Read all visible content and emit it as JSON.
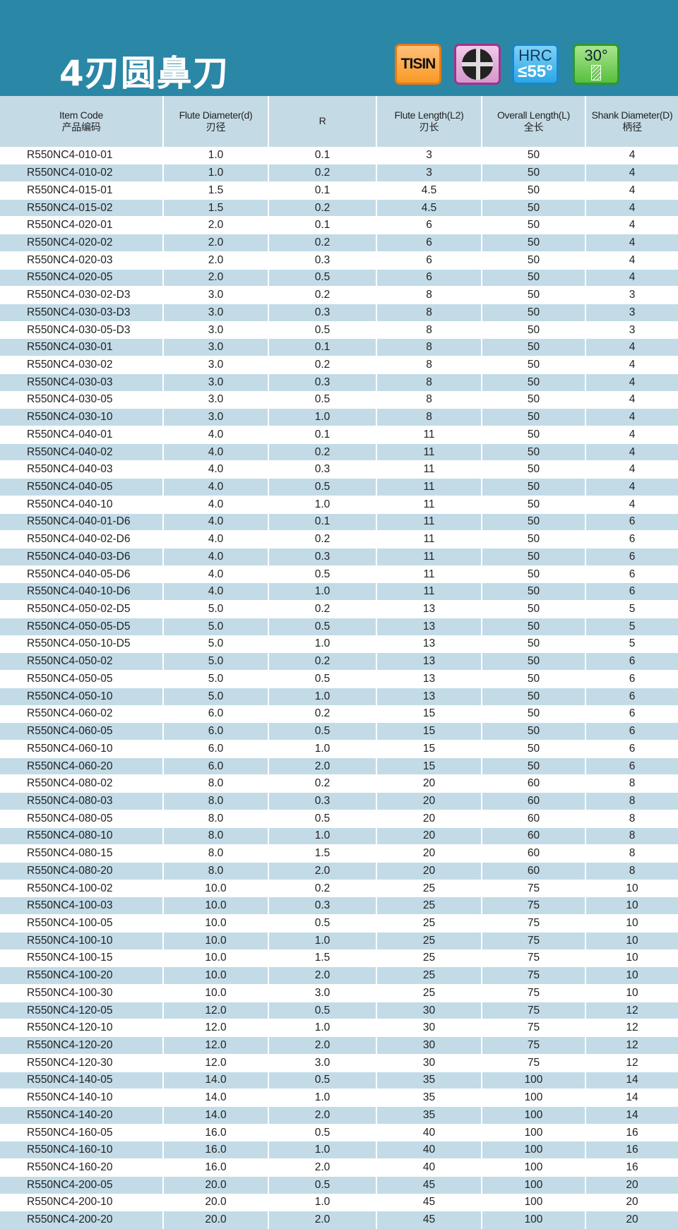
{
  "title": "4刃圆鼻刀",
  "badges": {
    "coating": "TISIN",
    "flutes_icon": "four-flute-icon",
    "hardness_top": "HRC",
    "hardness_bottom": "≤55°",
    "helix": "30°"
  },
  "colors": {
    "banner": "#2b87a6",
    "header_bg": "#c4dbe6",
    "stripe": "#c2dbe7"
  },
  "columns": [
    {
      "en": "Item Code",
      "cn": "产品编码"
    },
    {
      "en": "Flute  Diameter(d)",
      "cn": "刃径"
    },
    {
      "en": "R",
      "cn": ""
    },
    {
      "en": "Flute Length(L2)",
      "cn": "刃长"
    },
    {
      "en": "Overall Length(L)",
      "cn": "全长"
    },
    {
      "en": "Shank Diameter(D)",
      "cn": "柄径"
    }
  ],
  "rows": [
    [
      "R550NC4-010-01",
      "1.0",
      "0.1",
      "3",
      "50",
      "4"
    ],
    [
      "R550NC4-010-02",
      "1.0",
      "0.2",
      "3",
      "50",
      "4"
    ],
    [
      "R550NC4-015-01",
      "1.5",
      "0.1",
      "4.5",
      "50",
      "4"
    ],
    [
      "R550NC4-015-02",
      "1.5",
      "0.2",
      "4.5",
      "50",
      "4"
    ],
    [
      "R550NC4-020-01",
      "2.0",
      "0.1",
      "6",
      "50",
      "4"
    ],
    [
      "R550NC4-020-02",
      "2.0",
      "0.2",
      "6",
      "50",
      "4"
    ],
    [
      "R550NC4-020-03",
      "2.0",
      "0.3",
      "6",
      "50",
      "4"
    ],
    [
      "R550NC4-020-05",
      "2.0",
      "0.5",
      "6",
      "50",
      "4"
    ],
    [
      "R550NC4-030-02-D3",
      "3.0",
      "0.2",
      "8",
      "50",
      "3"
    ],
    [
      "R550NC4-030-03-D3",
      "3.0",
      "0.3",
      "8",
      "50",
      "3"
    ],
    [
      "R550NC4-030-05-D3",
      "3.0",
      "0.5",
      "8",
      "50",
      "3"
    ],
    [
      "R550NC4-030-01",
      "3.0",
      "0.1",
      "8",
      "50",
      "4"
    ],
    [
      "R550NC4-030-02",
      "3.0",
      "0.2",
      "8",
      "50",
      "4"
    ],
    [
      "R550NC4-030-03",
      "3.0",
      "0.3",
      "8",
      "50",
      "4"
    ],
    [
      "R550NC4-030-05",
      "3.0",
      "0.5",
      "8",
      "50",
      "4"
    ],
    [
      "R550NC4-030-10",
      "3.0",
      "1.0",
      "8",
      "50",
      "4"
    ],
    [
      "R550NC4-040-01",
      "4.0",
      "0.1",
      "11",
      "50",
      "4"
    ],
    [
      "R550NC4-040-02",
      "4.0",
      "0.2",
      "11",
      "50",
      "4"
    ],
    [
      "R550NC4-040-03",
      "4.0",
      "0.3",
      "11",
      "50",
      "4"
    ],
    [
      "R550NC4-040-05",
      "4.0",
      "0.5",
      "11",
      "50",
      "4"
    ],
    [
      "R550NC4-040-10",
      "4.0",
      "1.0",
      "11",
      "50",
      "4"
    ],
    [
      "R550NC4-040-01-D6",
      "4.0",
      "0.1",
      "11",
      "50",
      "6"
    ],
    [
      "R550NC4-040-02-D6",
      "4.0",
      "0.2",
      "11",
      "50",
      "6"
    ],
    [
      "R550NC4-040-03-D6",
      "4.0",
      "0.3",
      "11",
      "50",
      "6"
    ],
    [
      "R550NC4-040-05-D6",
      "4.0",
      "0.5",
      "11",
      "50",
      "6"
    ],
    [
      "R550NC4-040-10-D6",
      "4.0",
      "1.0",
      "11",
      "50",
      "6"
    ],
    [
      "R550NC4-050-02-D5",
      "5.0",
      "0.2",
      "13",
      "50",
      "5"
    ],
    [
      "R550NC4-050-05-D5",
      "5.0",
      "0.5",
      "13",
      "50",
      "5"
    ],
    [
      "R550NC4-050-10-D5",
      "5.0",
      "1.0",
      "13",
      "50",
      "5"
    ],
    [
      "R550NC4-050-02",
      "5.0",
      "0.2",
      "13",
      "50",
      "6"
    ],
    [
      "R550NC4-050-05",
      "5.0",
      "0.5",
      "13",
      "50",
      "6"
    ],
    [
      "R550NC4-050-10",
      "5.0",
      "1.0",
      "13",
      "50",
      "6"
    ],
    [
      "R550NC4-060-02",
      "6.0",
      "0.2",
      "15",
      "50",
      "6"
    ],
    [
      "R550NC4-060-05",
      "6.0",
      "0.5",
      "15",
      "50",
      "6"
    ],
    [
      "R550NC4-060-10",
      "6.0",
      "1.0",
      "15",
      "50",
      "6"
    ],
    [
      "R550NC4-060-20",
      "6.0",
      "2.0",
      "15",
      "50",
      "6"
    ],
    [
      "R550NC4-080-02",
      "8.0",
      "0.2",
      "20",
      "60",
      "8"
    ],
    [
      "R550NC4-080-03",
      "8.0",
      "0.3",
      "20",
      "60",
      "8"
    ],
    [
      "R550NC4-080-05",
      "8.0",
      "0.5",
      "20",
      "60",
      "8"
    ],
    [
      "R550NC4-080-10",
      "8.0",
      "1.0",
      "20",
      "60",
      "8"
    ],
    [
      "R550NC4-080-15",
      "8.0",
      "1.5",
      "20",
      "60",
      "8"
    ],
    [
      "R550NC4-080-20",
      "8.0",
      "2.0",
      "20",
      "60",
      "8"
    ],
    [
      "R550NC4-100-02",
      "10.0",
      "0.2",
      "25",
      "75",
      "10"
    ],
    [
      "R550NC4-100-03",
      "10.0",
      "0.3",
      "25",
      "75",
      "10"
    ],
    [
      "R550NC4-100-05",
      "10.0",
      "0.5",
      "25",
      "75",
      "10"
    ],
    [
      "R550NC4-100-10",
      "10.0",
      "1.0",
      "25",
      "75",
      "10"
    ],
    [
      "R550NC4-100-15",
      "10.0",
      "1.5",
      "25",
      "75",
      "10"
    ],
    [
      "R550NC4-100-20",
      "10.0",
      "2.0",
      "25",
      "75",
      "10"
    ],
    [
      "R550NC4-100-30",
      "10.0",
      "3.0",
      "25",
      "75",
      "10"
    ],
    [
      "R550NC4-120-05",
      "12.0",
      "0.5",
      "30",
      "75",
      "12"
    ],
    [
      "R550NC4-120-10",
      "12.0",
      "1.0",
      "30",
      "75",
      "12"
    ],
    [
      "R550NC4-120-20",
      "12.0",
      "2.0",
      "30",
      "75",
      "12"
    ],
    [
      "R550NC4-120-30",
      "12.0",
      "3.0",
      "30",
      "75",
      "12"
    ],
    [
      "R550NC4-140-05",
      "14.0",
      "0.5",
      "35",
      "100",
      "14"
    ],
    [
      "R550NC4-140-10",
      "14.0",
      "1.0",
      "35",
      "100",
      "14"
    ],
    [
      "R550NC4-140-20",
      "14.0",
      "2.0",
      "35",
      "100",
      "14"
    ],
    [
      "R550NC4-160-05",
      "16.0",
      "0.5",
      "40",
      "100",
      "16"
    ],
    [
      "R550NC4-160-10",
      "16.0",
      "1.0",
      "40",
      "100",
      "16"
    ],
    [
      "R550NC4-160-20",
      "16.0",
      "2.0",
      "40",
      "100",
      "16"
    ],
    [
      "R550NC4-200-05",
      "20.0",
      "0.5",
      "45",
      "100",
      "20"
    ],
    [
      "R550NC4-200-10",
      "20.0",
      "1.0",
      "45",
      "100",
      "20"
    ],
    [
      "R550NC4-200-20",
      "20.0",
      "2.0",
      "45",
      "100",
      "20"
    ]
  ]
}
